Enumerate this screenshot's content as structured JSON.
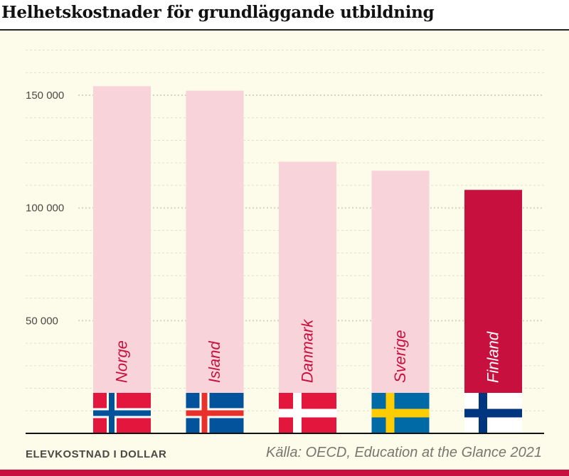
{
  "chart_data": {
    "type": "bar",
    "title": "Helhetskostnader för grundläggande utbildning",
    "ylabel": "ELEVKOSTNAD I DOLLAR",
    "source": "Källa: OECD, Education at the Glance 2021",
    "categories": [
      "Norge",
      "Island",
      "Danmark",
      "Sverige",
      "Finland"
    ],
    "values": [
      154000,
      152000,
      120500,
      116500,
      108000
    ],
    "highlight": "Finland",
    "ylim": [
      0,
      170000
    ],
    "yticks": [
      50000,
      100000,
      150000
    ],
    "ytick_labels": [
      "50 000",
      "100 000",
      "150 000"
    ],
    "grid": "dotted horizontal every 10 000",
    "colors": {
      "bar": "#f9d3da",
      "highlight": "#c8103e",
      "label": "#c8103e",
      "highlight_label": "#ffffff"
    }
  }
}
